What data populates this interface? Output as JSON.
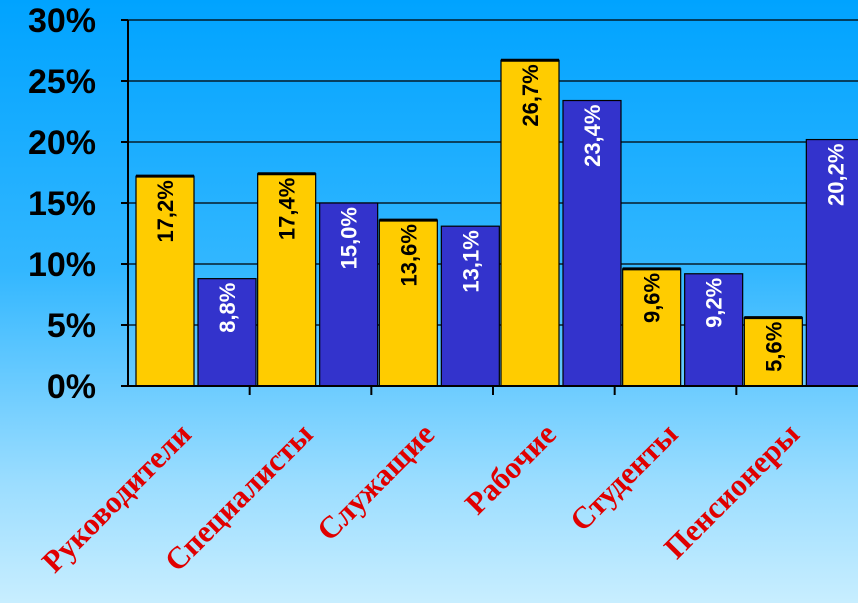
{
  "chart_data": {
    "type": "bar",
    "categories": [
      "Руководители",
      "Специалисты",
      "Служащие",
      "Рабочие",
      "Студенты",
      "Пенсионеры"
    ],
    "series": [
      {
        "values": [
          17.2,
          17.4,
          13.6,
          26.7,
          9.6,
          5.6
        ],
        "labels": [
          "17,2%",
          "17,4%",
          "13,6%",
          "26,7%",
          "9,6%",
          "5,6%"
        ],
        "color": "#FFCC00"
      },
      {
        "values": [
          8.8,
          15.0,
          13.1,
          23.4,
          9.2,
          20.2
        ],
        "labels": [
          "8,8%",
          "15,0%",
          "13,1%",
          "23,4%",
          "9,2%",
          "20,2%"
        ],
        "color": "#3333CC"
      }
    ],
    "ylim": [
      0,
      30
    ],
    "yticks": [
      "0%",
      "5%",
      "10%",
      "15%",
      "20%",
      "25%",
      "30%"
    ],
    "grid": true,
    "legend": "none"
  }
}
